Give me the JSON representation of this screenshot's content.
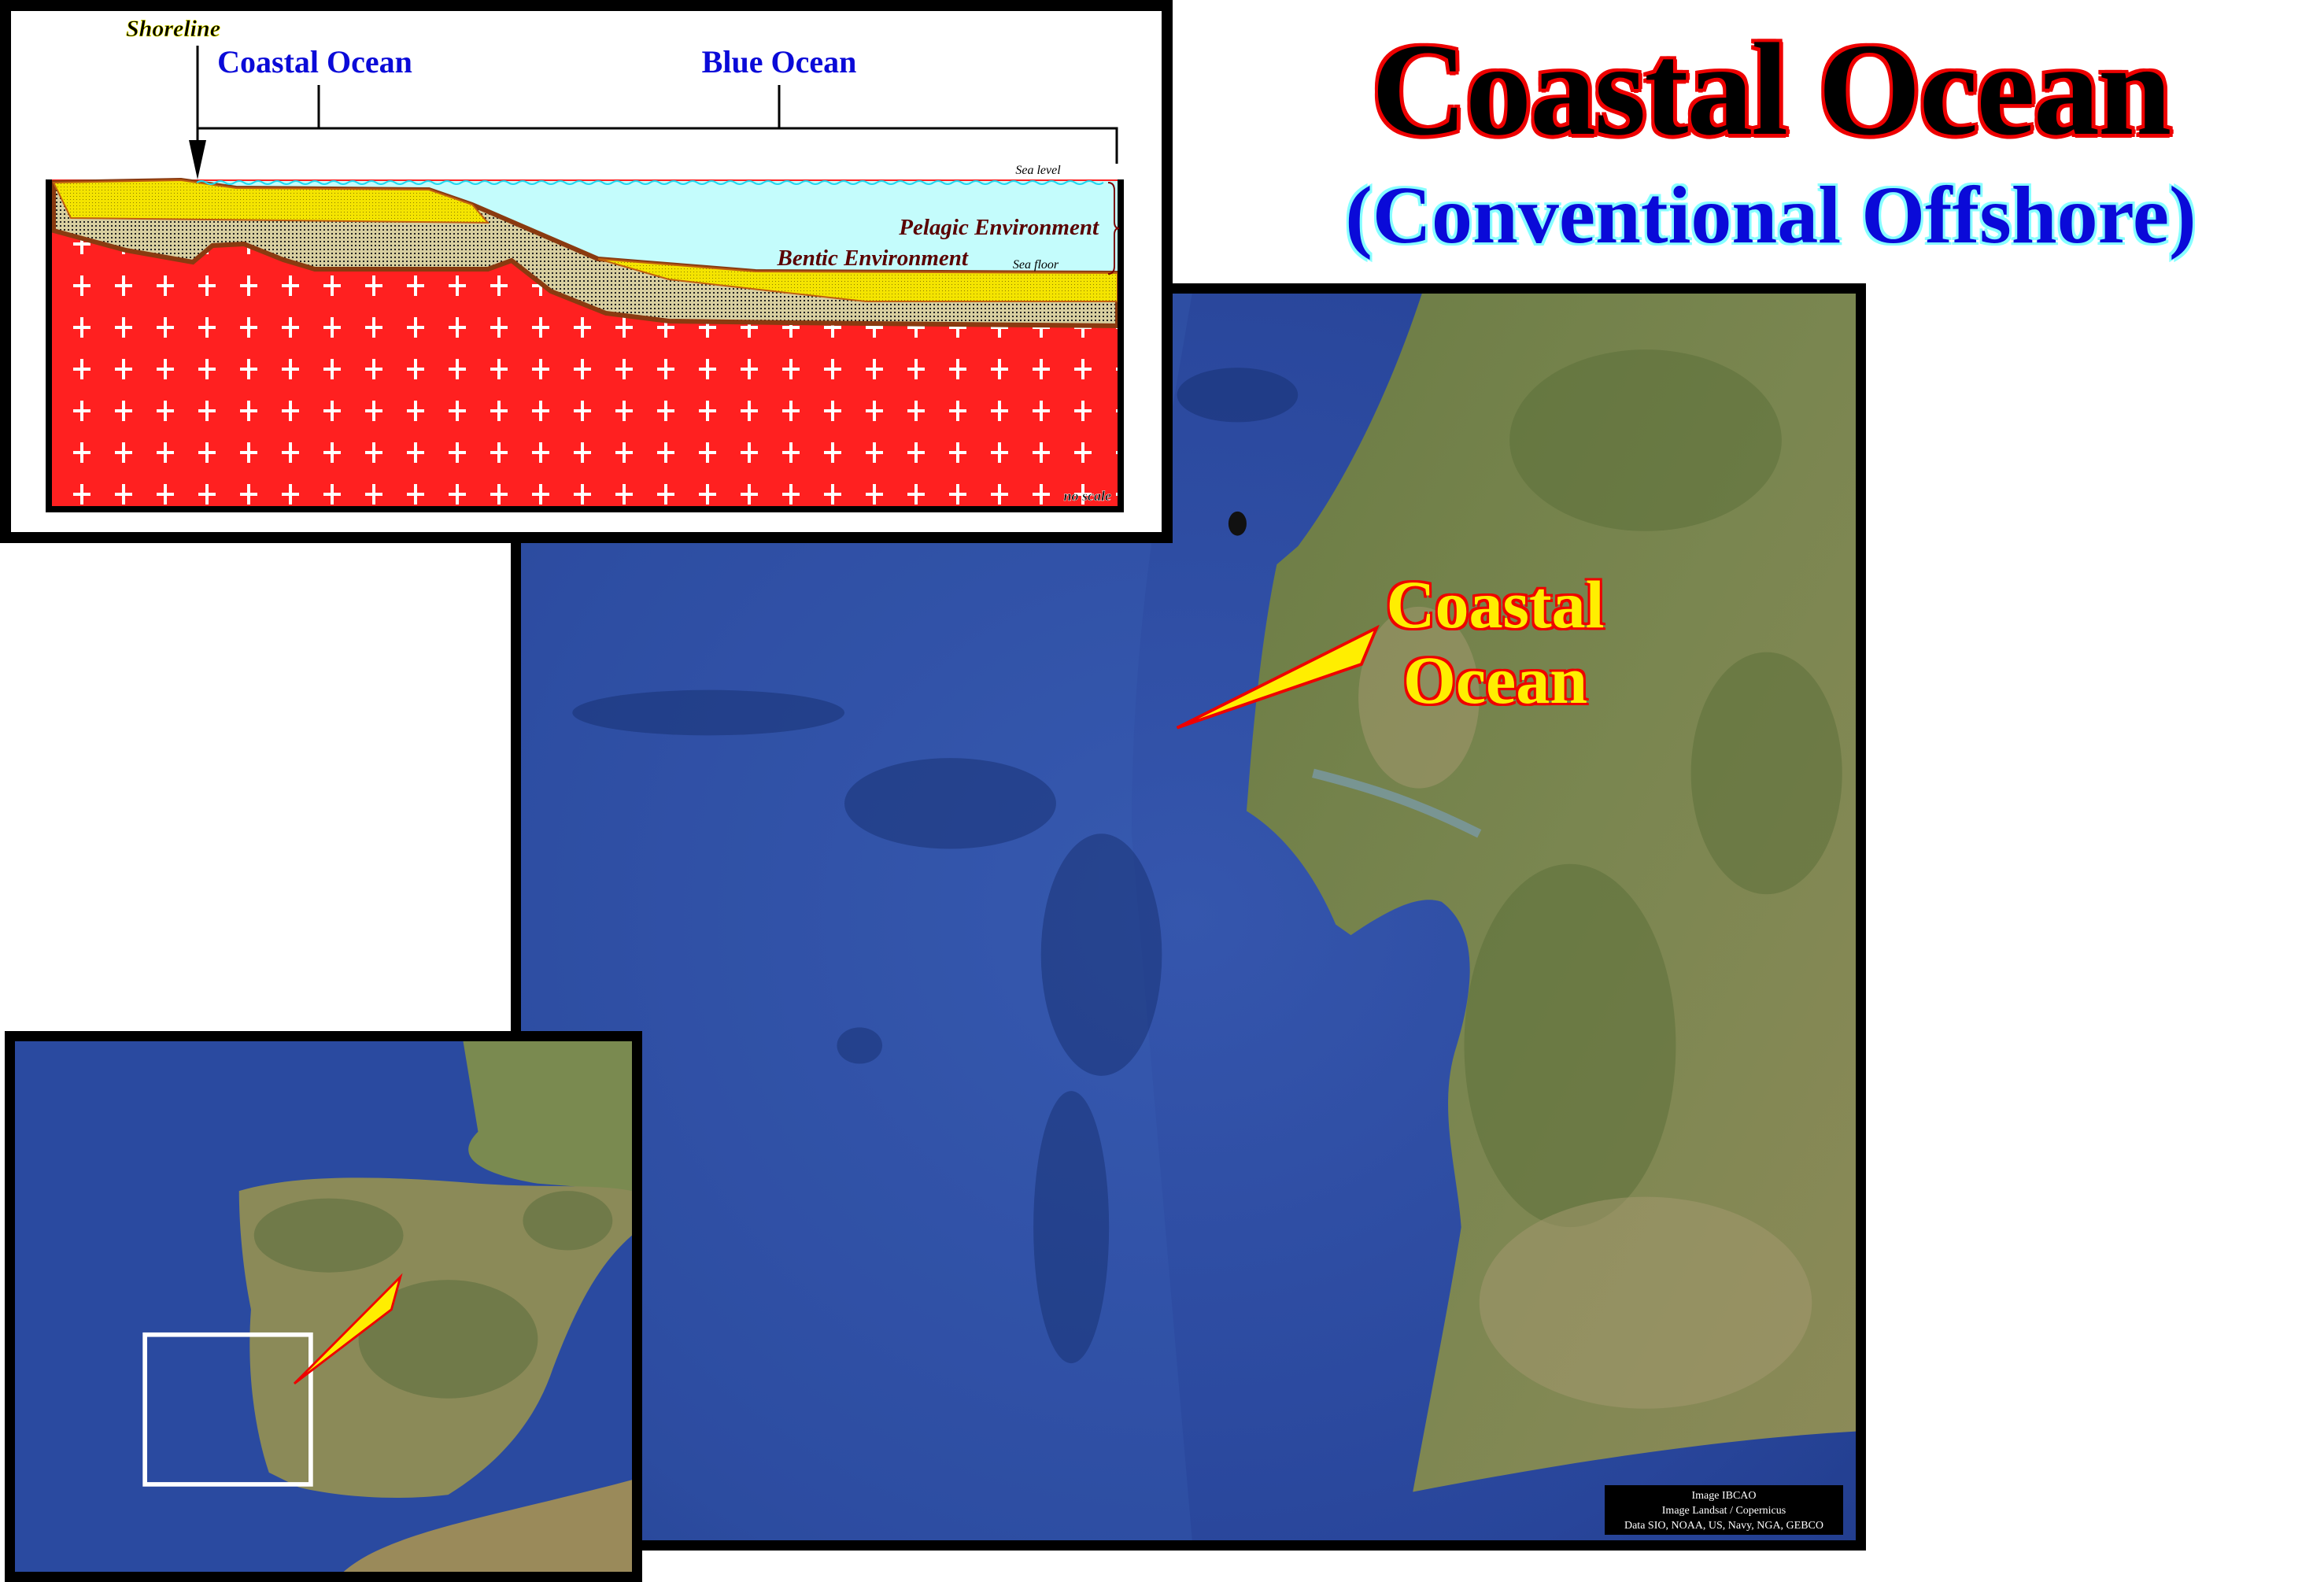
{
  "title": "Coastal Ocean",
  "subtitle": "(Conventional Offshore)",
  "diagram": {
    "shoreline": "Shoreline",
    "coastal_ocean": "Coastal Ocean",
    "blue_ocean": "Blue Ocean",
    "sea_level": "Sea level",
    "sea_floor": "Sea floor",
    "pelagic": "Pelagic Environment",
    "bentic": "Bentic Environment",
    "no_scale": "no scale"
  },
  "main_map": {
    "label_line1": "Coastal",
    "label_line2": "Ocean",
    "attribution": [
      "Image IBCAO",
      "Image Landsat / Copernicus",
      "Data SIO, NOAA, US, Navy, NGA, GEBCO"
    ]
  },
  "colors": {
    "title_red": "#ee0000",
    "label_blue": "#0a0ad8",
    "basement_red": "#ff2020",
    "sand_yellow": "#f4e400",
    "water": "#c4fcfc",
    "ocean": "#2c4ea3",
    "land": "#6f7f45"
  }
}
